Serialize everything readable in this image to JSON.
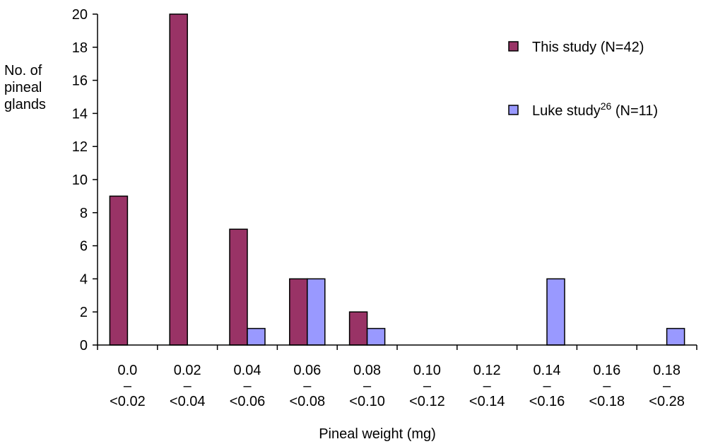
{
  "chart_data": {
    "type": "bar",
    "categories": [
      [
        "0.0",
        "–",
        "<0.02"
      ],
      [
        "0.02",
        "–",
        "<0.04"
      ],
      [
        "0.04",
        "–",
        "<0.06"
      ],
      [
        "0.06",
        "–",
        "<0.08"
      ],
      [
        "0.08",
        "–",
        "<0.10"
      ],
      [
        "0.10",
        "–",
        "<0.12"
      ],
      [
        "0.12",
        "–",
        "<0.14"
      ],
      [
        "0.14",
        "–",
        "<0.16"
      ],
      [
        "0.16",
        "–",
        "<0.18"
      ],
      [
        "0.18",
        "–",
        "<0.28"
      ]
    ],
    "series": [
      {
        "name": "This study (N=42)",
        "legend_main": "This study (N=42)",
        "color": "#993366",
        "values": [
          9,
          20,
          7,
          4,
          2,
          0,
          0,
          0,
          0,
          0
        ]
      },
      {
        "name": "Luke study26 (N=11)",
        "legend_main": "Luke study",
        "legend_sup": "26",
        "legend_tail": " (N=11)",
        "color": "#9999ff",
        "values": [
          0,
          0,
          1,
          4,
          1,
          0,
          0,
          4,
          0,
          1
        ]
      }
    ],
    "yticks": [
      "0",
      "2",
      "4",
      "6",
      "8",
      "10",
      "12",
      "14",
      "16",
      "18",
      "20"
    ],
    "ylim": [
      0,
      20
    ],
    "ylabel": [
      "No. of",
      "pineal",
      "glands"
    ],
    "xlabel": "Pineal weight (mg)",
    "legend_position": "top-right",
    "grid": false
  }
}
